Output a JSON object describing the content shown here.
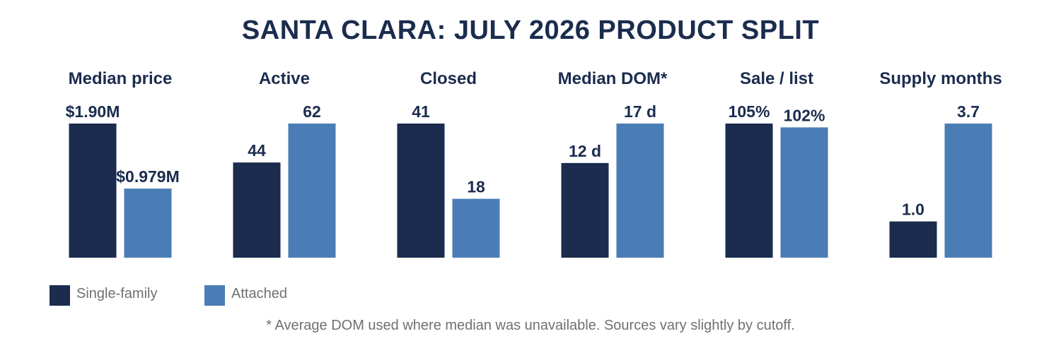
{
  "chart_data": {
    "type": "bar",
    "title": "SANTA CLARA: JULY 2026 PRODUCT SPLIT",
    "series": [
      {
        "name": "Single-family",
        "color": "#1b2c4e"
      },
      {
        "name": "Attached",
        "color": "#4a7db5"
      }
    ],
    "panels": [
      {
        "title": "Median price",
        "values": [
          1.9,
          0.979
        ],
        "labels": [
          "$1.90M",
          "$0.979M"
        ]
      },
      {
        "title": "Active",
        "values": [
          44,
          62
        ],
        "labels": [
          "44",
          "62"
        ]
      },
      {
        "title": "Closed",
        "values": [
          41,
          18
        ],
        "labels": [
          "41",
          "18"
        ]
      },
      {
        "title": "Median DOM*",
        "values": [
          12,
          17
        ],
        "labels": [
          "12 d",
          "17 d"
        ]
      },
      {
        "title": "Sale / list",
        "values": [
          105,
          102
        ],
        "labels": [
          "105%",
          "102%"
        ]
      },
      {
        "title": "Supply months",
        "values": [
          1.0,
          3.7
        ],
        "labels": [
          "1.0",
          "3.7"
        ]
      }
    ],
    "legend_position": "bottom-left",
    "grid": false,
    "footnote": "* Average DOM used where median was unavailable. Sources vary slightly by cutoff."
  }
}
